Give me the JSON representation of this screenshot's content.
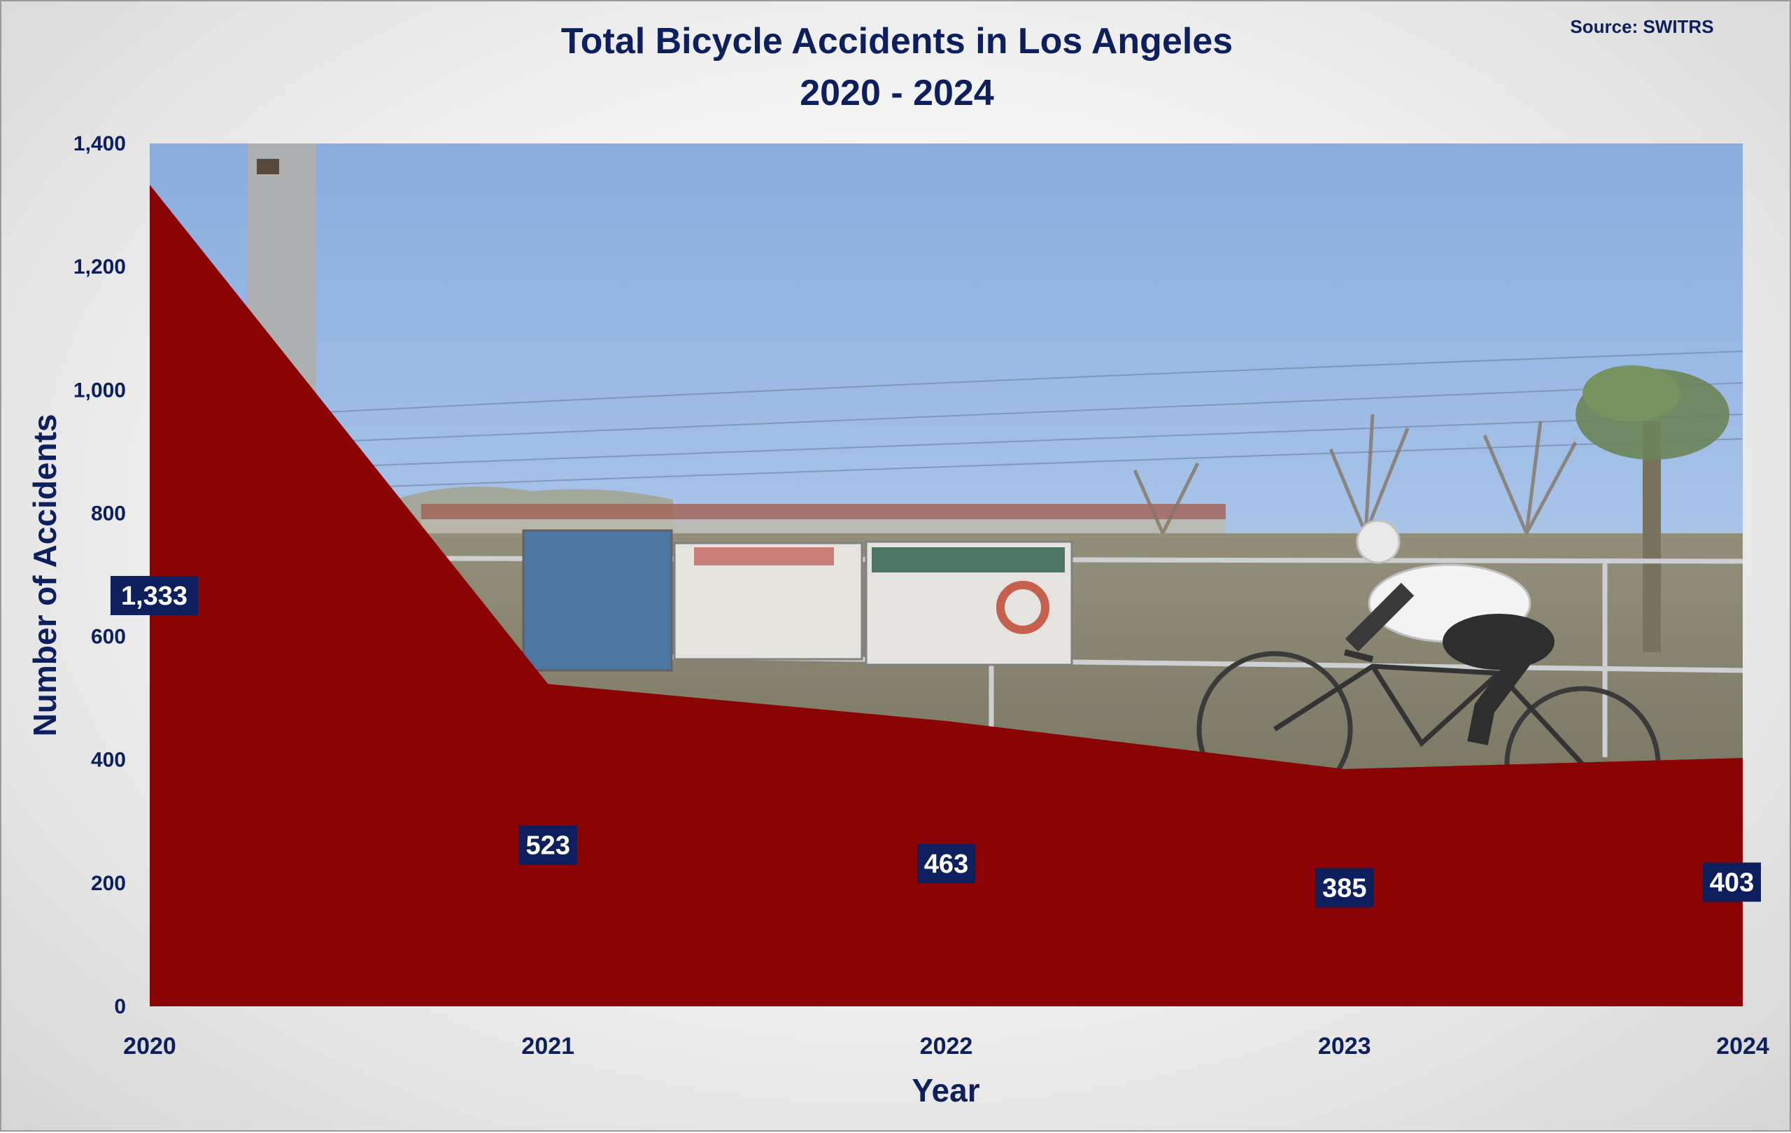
{
  "source": "Source: SWITRS",
  "chart_data": {
    "type": "area",
    "title": [
      "Total Bicycle Accidents in Los Angeles",
      "2020 - 2024"
    ],
    "xlabel": "Year",
    "ylabel": "Number of Accidents",
    "x": [
      "2020",
      "2021",
      "2022",
      "2023",
      "2024"
    ],
    "series": [
      {
        "values": [
          1333,
          523,
          463,
          385,
          403
        ]
      }
    ],
    "data_labels": [
      "1,333",
      "523",
      "463",
      "385",
      "403"
    ],
    "ylim": [
      0,
      1400
    ],
    "yticks": [
      0,
      200,
      400,
      600,
      800,
      1000,
      1200,
      1400
    ],
    "ytick_labels": [
      "0",
      "200",
      "400",
      "600",
      "800",
      "1,000",
      "1,200",
      "1,400"
    ],
    "grid": false,
    "legend": "none",
    "colors": {
      "area": "#8b0405",
      "label_box": "#0d1f5c",
      "text": "#0d1f5c"
    },
    "background": "photo of a cyclist riding past Los Angeles River signs"
  }
}
